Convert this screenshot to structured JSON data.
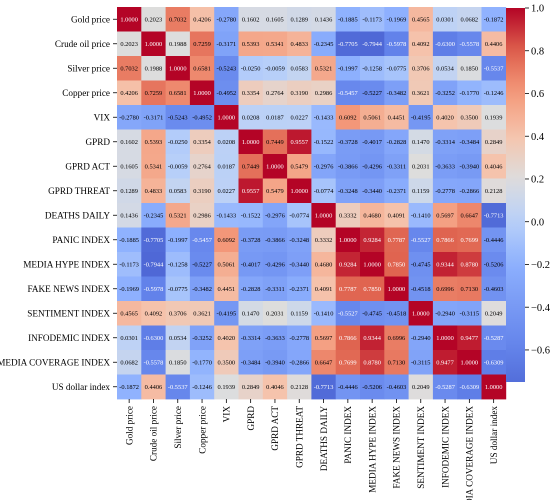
{
  "chart_data": {
    "type": "heatmap",
    "title": "",
    "xlabel": "",
    "ylabel": "",
    "labels": [
      "Gold price",
      "Crude oil price",
      "Silver price",
      "Copper price",
      "VIX",
      "GPRD",
      "GPRD ACT",
      "GPRD THREAT",
      "DEATHS DAILY",
      "PANIC INDEX",
      "MEDIA HYPE INDEX",
      "FAKE NEWS INDEX",
      "SENTIMENT INDEX",
      "INFODEMIC INDEX",
      "MEDIA COVERAGE INDEX",
      "US dollar index"
    ],
    "matrix": [
      [
        1.0,
        0.2023,
        0.7032,
        0.4206,
        -0.278,
        0.1602,
        0.1605,
        0.1289,
        0.1436,
        -0.1885,
        -0.1173,
        -0.1969,
        0.4565,
        0.0301,
        0.0682,
        -0.1872
      ],
      [
        0.2023,
        1.0,
        0.1988,
        0.7259,
        -0.3171,
        0.5393,
        0.5341,
        0.4833,
        -0.2345,
        -0.7705,
        -0.7944,
        -0.5978,
        0.4092,
        -0.63,
        -0.5578,
        0.4406
      ],
      [
        0.7032,
        0.1988,
        1.0,
        0.6581,
        -0.5243,
        -0.025,
        -0.0059,
        0.0583,
        0.5321,
        -0.1997,
        -0.1258,
        -0.0775,
        0.3706,
        0.0534,
        0.185,
        -0.5537
      ],
      [
        0.4206,
        0.7259,
        0.6581,
        1.0,
        -0.4952,
        0.3354,
        0.2764,
        0.319,
        0.2986,
        -0.5457,
        -0.5227,
        -0.3482,
        0.3621,
        -0.3252,
        -0.177,
        -0.1246
      ],
      [
        -0.278,
        -0.3171,
        -0.5243,
        -0.4952,
        1.0,
        0.0208,
        0.0187,
        0.0227,
        -0.1433,
        0.6092,
        0.5061,
        0.4451,
        -0.4195,
        0.402,
        0.35,
        0.1939
      ],
      [
        0.1602,
        0.5393,
        -0.025,
        0.3354,
        0.0208,
        1.0,
        0.7449,
        0.9557,
        -0.1522,
        -0.3728,
        -0.4017,
        -0.2828,
        0.147,
        -0.3314,
        -0.3484,
        0.2849
      ],
      [
        0.1605,
        0.5341,
        -0.0059,
        0.2764,
        0.0187,
        0.7449,
        1.0,
        0.5479,
        -0.2976,
        -0.3866,
        -0.4296,
        -0.3311,
        0.2031,
        -0.3633,
        -0.394,
        0.4046
      ],
      [
        0.1289,
        0.4833,
        0.0583,
        0.319,
        0.0227,
        0.9557,
        0.5479,
        1.0,
        -0.0774,
        -0.3248,
        -0.344,
        -0.2371,
        0.1159,
        -0.2778,
        -0.2866,
        0.2128
      ],
      [
        0.1436,
        -0.2345,
        0.5321,
        0.2986,
        -0.1433,
        -0.1522,
        -0.2976,
        -0.0774,
        1.0,
        0.3332,
        0.468,
        0.4091,
        -0.141,
        0.5697,
        0.6647,
        -0.7713
      ],
      [
        -0.1885,
        -0.7705,
        -0.1997,
        -0.5457,
        0.6092,
        -0.3728,
        -0.3866,
        -0.3248,
        0.3332,
        1.0,
        0.9284,
        0.7787,
        -0.5527,
        0.7866,
        0.7699,
        -0.4446
      ],
      [
        -0.1173,
        -0.7944,
        -0.1258,
        -0.5227,
        0.5061,
        -0.4017,
        -0.4296,
        -0.344,
        0.468,
        0.9284,
        1.0,
        0.785,
        -0.4745,
        0.9344,
        0.878,
        -0.5206
      ],
      [
        -0.1969,
        -0.5978,
        -0.0775,
        -0.3482,
        0.4451,
        -0.2828,
        -0.3311,
        -0.2371,
        0.4091,
        0.7787,
        0.785,
        1.0,
        -0.4518,
        0.6996,
        0.713,
        -0.4603
      ],
      [
        0.4565,
        0.4092,
        0.3706,
        0.3621,
        -0.4195,
        0.147,
        0.2031,
        0.1159,
        -0.141,
        -0.5527,
        -0.4745,
        -0.4518,
        1.0,
        -0.294,
        -0.3115,
        0.2049
      ],
      [
        0.0301,
        -0.63,
        0.0534,
        -0.3252,
        0.402,
        -0.3314,
        -0.3633,
        -0.2778,
        0.5697,
        0.7866,
        0.9344,
        0.6996,
        -0.294,
        1.0,
        0.9477,
        -0.5287
      ],
      [
        0.0682,
        -0.5578,
        0.185,
        -0.177,
        0.35,
        -0.3484,
        -0.394,
        -0.2866,
        0.6647,
        0.7699,
        0.878,
        0.713,
        -0.3115,
        0.9477,
        1.0,
        -0.6309
      ],
      [
        -0.1872,
        0.4406,
        -0.5537,
        -0.1246,
        0.1939,
        0.2849,
        0.4046,
        0.2128,
        -0.7713,
        -0.4446,
        -0.5206,
        -0.4603,
        0.2049,
        -0.5287,
        -0.6309,
        1.0
      ]
    ],
    "colorbar": {
      "min": -0.75,
      "max": 1.0,
      "ticks": [
        1.0,
        0.8,
        0.6,
        0.4,
        0.2,
        0.0,
        -0.2,
        -0.4,
        -0.6
      ]
    },
    "colormap": "coolwarm",
    "grid": false,
    "legend": "colorbar-right"
  }
}
